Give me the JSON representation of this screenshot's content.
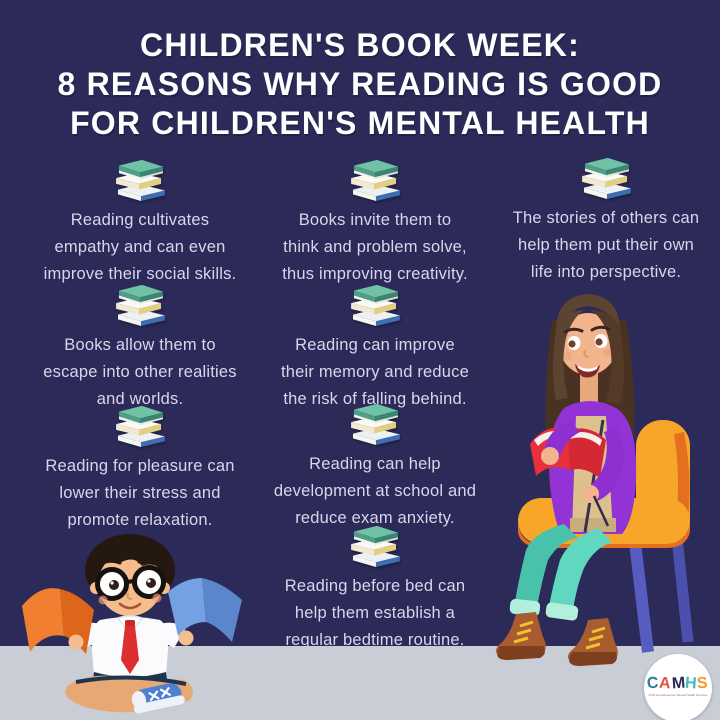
{
  "title": {
    "lines": [
      "CHILDREN'S BOOK WEEK:",
      "8 REASONS WHY READING IS GOOD",
      "FOR CHILDREN'S MENTAL HEALTH"
    ]
  },
  "reasons": [
    {
      "col": "left",
      "row": 1,
      "lines": [
        "Reading cultivates",
        "empathy and can even",
        "improve their social skills."
      ]
    },
    {
      "col": "middle",
      "row": 1,
      "lines": [
        "Books invite them to",
        "think and problem solve,",
        "thus improving creativity."
      ]
    },
    {
      "col": "right",
      "row": 1,
      "lines": [
        "The stories of others can",
        "help them put their own",
        "life into perspective."
      ]
    },
    {
      "col": "left",
      "row": 2,
      "lines": [
        "Books allow them to",
        "escape into other realities",
        "and worlds."
      ]
    },
    {
      "col": "middle",
      "row": 2,
      "lines": [
        "Reading can improve",
        "their memory and reduce",
        "the risk of falling behind."
      ]
    },
    {
      "col": "left",
      "row": 3,
      "lines": [
        "Reading for pleasure can",
        "lower their stress and",
        "promote relaxation."
      ]
    },
    {
      "col": "middle",
      "row": 3,
      "lines": [
        "Reading can help",
        "development at school and",
        "reduce exam anxiety."
      ]
    },
    {
      "col": "middle",
      "row": 4,
      "lines": [
        "Reading before bed can",
        "help them establish a",
        "regular bedtime routine."
      ]
    }
  ],
  "icons": {
    "book_stack": "book-stack-icon"
  },
  "illustrations": {
    "left": "boy-reading-two-books",
    "right": "girl-reading-on-chair"
  },
  "logo": {
    "letters": [
      {
        "ch": "C",
        "color": "#2e7d95"
      },
      {
        "ch": "A",
        "color": "#e2523f"
      },
      {
        "ch": "M",
        "color": "#27275a"
      },
      {
        "ch": "H",
        "color": "#48b8c0"
      },
      {
        "ch": "S",
        "color": "#f2992e"
      }
    ],
    "tagline": "Child and Adolescent Mental Health Services"
  },
  "colors": {
    "background": "#2c2a58",
    "footer": "#c9ced6",
    "title": "#ffffff",
    "body_text": "#d9d6ec",
    "book_teal": "#5fb39a"
  }
}
